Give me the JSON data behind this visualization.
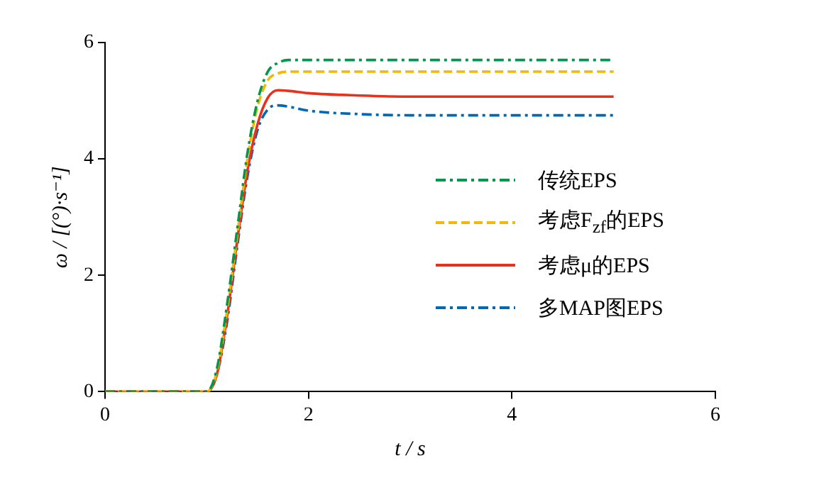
{
  "chart_data": {
    "type": "line",
    "xlabel": "t / s",
    "ylabel": "ω / [(°)·s⁻¹]",
    "x": [
      0,
      1.0,
      1.1,
      1.2,
      1.3,
      1.4,
      1.5,
      1.6,
      1.7,
      1.8,
      2.0,
      2.5,
      3.0,
      4.0,
      5.0
    ],
    "xlim": [
      0,
      6
    ],
    "xticks": [
      0,
      2,
      4,
      6
    ],
    "ylim": [
      0,
      6
    ],
    "yticks": [
      0,
      2,
      4,
      6
    ],
    "grid": false,
    "legend": "right",
    "marker": "none",
    "series": [
      {
        "name": "传统EPS",
        "color": "#00994c",
        "line_style": "dashdot",
        "values": [
          0,
          0,
          0.4,
          1.5,
          2.8,
          4.1,
          5.0,
          5.5,
          5.65,
          5.7,
          5.7,
          5.7,
          5.7,
          5.7,
          5.7
        ]
      },
      {
        "name": "考虑F$_{zf}$的EPS",
        "color": "#f5b800",
        "line_style": "dashed",
        "values": [
          0,
          0,
          0.35,
          1.4,
          2.7,
          4.0,
          4.9,
          5.35,
          5.47,
          5.5,
          5.5,
          5.5,
          5.5,
          5.5,
          5.5
        ]
      },
      {
        "name": "考虑μ的EPS",
        "color": "#e8321e",
        "line_style": "solid",
        "values": [
          0,
          0,
          0.3,
          1.3,
          2.6,
          3.8,
          4.6,
          5.05,
          5.18,
          5.17,
          5.13,
          5.09,
          5.07,
          5.07,
          5.07
        ]
      },
      {
        "name": "多MAP图EPS",
        "color": "#0068b4",
        "line_style": "dashdot",
        "values": [
          0,
          0,
          0.3,
          1.2,
          2.5,
          3.7,
          4.5,
          4.85,
          4.92,
          4.9,
          4.83,
          4.77,
          4.75,
          4.75,
          4.75
        ]
      }
    ]
  }
}
